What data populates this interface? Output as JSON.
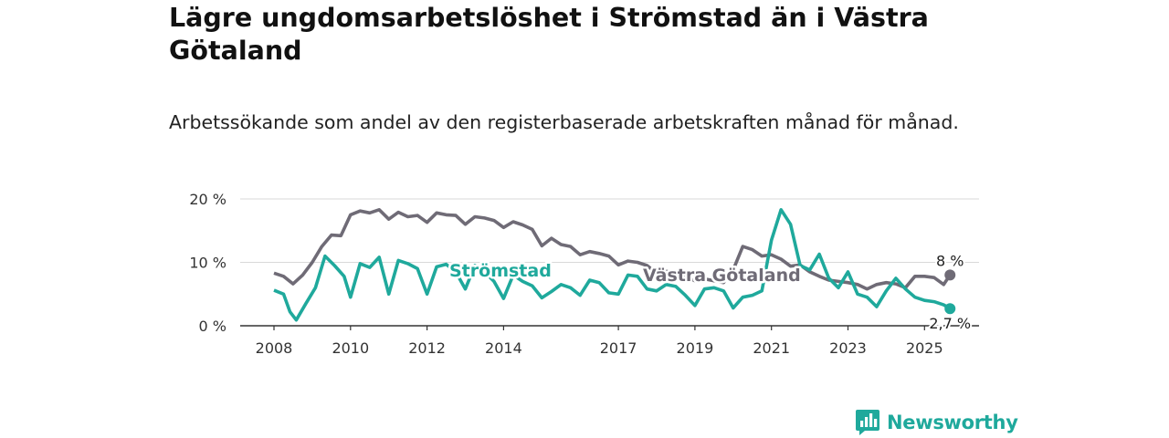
{
  "title": "Lägre ungdomsarbetslöshet i Strömstad än i Västra Götaland",
  "subtitle": "Arbetssökande som andel av den registerbaserade arbetskraften månad för månad.",
  "brand": {
    "name": "Newsworthy"
  },
  "colors": {
    "stromstad": "#1fa99c",
    "vg": "#6f6b76",
    "brand": "#1fa99c",
    "grid": "#d9d9d9",
    "axis": "#333333"
  },
  "chart_data": {
    "type": "line",
    "title": "Lägre ungdomsarbetslöshet i Strömstad än i Västra Götaland",
    "subtitle": "Arbetssökande som andel av den registerbaserade arbetskraften månad för månad.",
    "xlabel": "",
    "ylabel": "",
    "x_ticks": [
      "2008",
      "2010",
      "2012",
      "2014",
      "2017",
      "2019",
      "2021",
      "2023",
      "2025"
    ],
    "y_ticks": [
      "0 %",
      "10 %",
      "20 %"
    ],
    "ylim": [
      0,
      20
    ],
    "xlim": [
      "2008-01",
      "2025-09"
    ],
    "grid": true,
    "legend": "inline labels",
    "series": [
      {
        "name": "Västra Götaland",
        "end_label": "8 %",
        "points": [
          [
            "2008-01",
            8.3
          ],
          [
            "2008-04",
            7.8
          ],
          [
            "2008-07",
            6.6
          ],
          [
            "2008-10",
            8.0
          ],
          [
            "2009-01",
            10.0
          ],
          [
            "2009-04",
            12.5
          ],
          [
            "2009-07",
            14.3
          ],
          [
            "2009-10",
            14.2
          ],
          [
            "2010-01",
            17.5
          ],
          [
            "2010-04",
            18.1
          ],
          [
            "2010-07",
            17.8
          ],
          [
            "2010-10",
            18.3
          ],
          [
            "2011-01",
            16.8
          ],
          [
            "2011-04",
            17.9
          ],
          [
            "2011-07",
            17.2
          ],
          [
            "2011-10",
            17.4
          ],
          [
            "2012-01",
            16.3
          ],
          [
            "2012-04",
            17.8
          ],
          [
            "2012-07",
            17.5
          ],
          [
            "2012-10",
            17.4
          ],
          [
            "2013-01",
            16.0
          ],
          [
            "2013-04",
            17.2
          ],
          [
            "2013-07",
            17.0
          ],
          [
            "2013-10",
            16.6
          ],
          [
            "2014-01",
            15.5
          ],
          [
            "2014-04",
            16.4
          ],
          [
            "2014-07",
            15.9
          ],
          [
            "2014-10",
            15.2
          ],
          [
            "2015-01",
            12.6
          ],
          [
            "2015-04",
            13.8
          ],
          [
            "2015-07",
            12.8
          ],
          [
            "2015-10",
            12.5
          ],
          [
            "2016-01",
            11.2
          ],
          [
            "2016-04",
            11.7
          ],
          [
            "2016-07",
            11.4
          ],
          [
            "2016-10",
            11.0
          ],
          [
            "2017-01",
            9.6
          ],
          [
            "2017-04",
            10.2
          ],
          [
            "2017-07",
            10.0
          ],
          [
            "2017-10",
            9.5
          ],
          [
            "2018-01",
            8.3
          ],
          [
            "2018-04",
            8.6
          ],
          [
            "2018-07",
            8.2
          ],
          [
            "2018-10",
            7.7
          ],
          [
            "2019-01",
            7.1
          ],
          [
            "2019-04",
            7.4
          ],
          [
            "2019-07",
            7.1
          ],
          [
            "2019-10",
            6.8
          ],
          [
            "2020-01",
            8.8
          ],
          [
            "2020-04",
            12.5
          ],
          [
            "2020-07",
            12.0
          ],
          [
            "2020-10",
            11.0
          ],
          [
            "2021-01",
            11.2
          ],
          [
            "2021-04",
            10.5
          ],
          [
            "2021-07",
            9.4
          ],
          [
            "2021-10",
            9.6
          ],
          [
            "2022-01",
            8.5
          ],
          [
            "2022-04",
            7.8
          ],
          [
            "2022-07",
            7.2
          ],
          [
            "2022-10",
            7.0
          ],
          [
            "2023-01",
            6.8
          ],
          [
            "2023-04",
            6.5
          ],
          [
            "2023-07",
            5.8
          ],
          [
            "2023-10",
            6.5
          ],
          [
            "2024-01",
            6.8
          ],
          [
            "2024-04",
            6.6
          ],
          [
            "2024-07",
            6.0
          ],
          [
            "2024-10",
            7.8
          ],
          [
            "2025-01",
            7.8
          ],
          [
            "2025-04",
            7.6
          ],
          [
            "2025-07",
            6.5
          ],
          [
            "2025-09",
            8.0
          ]
        ]
      },
      {
        "name": "Strömstad",
        "end_label": "2,7 %",
        "points": [
          [
            "2008-01",
            5.6
          ],
          [
            "2008-04",
            5.0
          ],
          [
            "2008-06",
            2.2
          ],
          [
            "2008-08",
            0.9
          ],
          [
            "2008-11",
            3.5
          ],
          [
            "2009-02",
            6.0
          ],
          [
            "2009-05",
            11.0
          ],
          [
            "2009-08",
            9.5
          ],
          [
            "2009-11",
            7.8
          ],
          [
            "2010-01",
            4.5
          ],
          [
            "2010-04",
            9.8
          ],
          [
            "2010-07",
            9.2
          ],
          [
            "2010-10",
            10.8
          ],
          [
            "2011-01",
            5.0
          ],
          [
            "2011-04",
            10.3
          ],
          [
            "2011-07",
            9.8
          ],
          [
            "2011-10",
            9.0
          ],
          [
            "2012-01",
            5.0
          ],
          [
            "2012-04",
            9.3
          ],
          [
            "2012-07",
            9.7
          ],
          [
            "2012-10",
            8.5
          ],
          [
            "2013-01",
            5.8
          ],
          [
            "2013-04",
            9.5
          ],
          [
            "2013-07",
            8.5
          ],
          [
            "2013-10",
            7.0
          ],
          [
            "2014-01",
            4.3
          ],
          [
            "2014-04",
            8.0
          ],
          [
            "2014-07",
            7.0
          ],
          [
            "2014-10",
            6.3
          ],
          [
            "2015-01",
            4.4
          ],
          [
            "2015-04",
            5.4
          ],
          [
            "2015-07",
            6.5
          ],
          [
            "2015-10",
            6.0
          ],
          [
            "2016-01",
            4.8
          ],
          [
            "2016-04",
            7.2
          ],
          [
            "2016-07",
            6.8
          ],
          [
            "2016-10",
            5.2
          ],
          [
            "2017-01",
            5.0
          ],
          [
            "2017-04",
            8.0
          ],
          [
            "2017-07",
            7.8
          ],
          [
            "2017-10",
            5.8
          ],
          [
            "2018-01",
            5.5
          ],
          [
            "2018-04",
            6.5
          ],
          [
            "2018-07",
            6.2
          ],
          [
            "2018-10",
            4.8
          ],
          [
            "2019-01",
            3.2
          ],
          [
            "2019-04",
            5.8
          ],
          [
            "2019-07",
            6.0
          ],
          [
            "2019-10",
            5.5
          ],
          [
            "2020-01",
            2.8
          ],
          [
            "2020-04",
            4.5
          ],
          [
            "2020-07",
            4.8
          ],
          [
            "2020-10",
            5.5
          ],
          [
            "2021-01",
            13.5
          ],
          [
            "2021-04",
            18.3
          ],
          [
            "2021-07",
            16.0
          ],
          [
            "2021-10",
            9.5
          ],
          [
            "2022-01",
            8.8
          ],
          [
            "2022-04",
            11.3
          ],
          [
            "2022-07",
            7.5
          ],
          [
            "2022-10",
            6.0
          ],
          [
            "2023-01",
            8.5
          ],
          [
            "2023-04",
            5.0
          ],
          [
            "2023-07",
            4.5
          ],
          [
            "2023-10",
            3.0
          ],
          [
            "2024-01",
            5.5
          ],
          [
            "2024-04",
            7.5
          ],
          [
            "2024-07",
            5.8
          ],
          [
            "2024-10",
            4.5
          ],
          [
            "2025-01",
            4.0
          ],
          [
            "2025-04",
            3.8
          ],
          [
            "2025-07",
            3.3
          ],
          [
            "2025-09",
            2.7
          ]
        ]
      }
    ]
  }
}
